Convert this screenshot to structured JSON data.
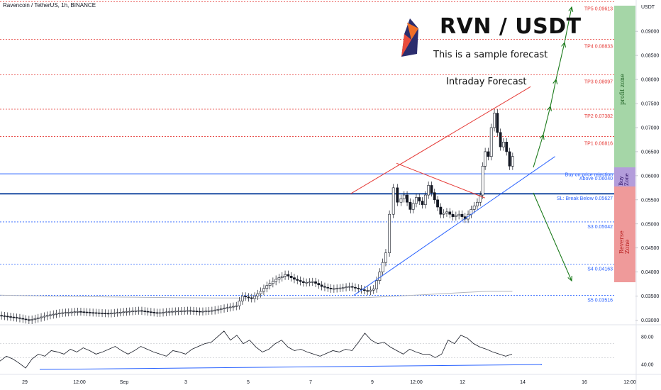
{
  "header": {
    "symbol": "Ravencoin / TetherUS, 1h, BINANCE"
  },
  "title": "RVN / USDT",
  "subtitle": "This is a sample forecast",
  "forecast_label": "Intraday Forecast",
  "axis_unit": "USDT",
  "zones": {
    "profit": "profit zone",
    "buy_line1": "Buy",
    "buy_line2": "Zone",
    "reverse_line1": "Reverse",
    "reverse_line2": "Zone"
  },
  "colors": {
    "up": "#131722",
    "down": "#131722",
    "tp": "#e53935",
    "support": "#2962ff",
    "profit_zone": "#a5d6a7",
    "buy_zone": "#b39ddb",
    "reverse_zone": "#ef9a9a",
    "arrow": "#1b7a1b",
    "ma": "#b2b5be"
  },
  "chart_data": [
    {
      "type": "candlestick",
      "title": "RVN / USDT",
      "ylim": [
        0.0295,
        0.0965
      ],
      "x_ticks": [
        "29",
        "12:00",
        "Sep",
        "3",
        "5",
        "7",
        "9",
        "12:00",
        "12",
        "14",
        "16",
        "12:00"
      ],
      "y_ticks": [
        0.03,
        0.035,
        0.04,
        0.045,
        0.05,
        0.055,
        0.06,
        0.065,
        0.07,
        0.075,
        0.08,
        0.085,
        0.09
      ],
      "price_path": [
        [
          0.0,
          0.031
        ],
        [
          3.0,
          0.0305
        ],
        [
          5.0,
          0.03
        ],
        [
          8.0,
          0.031
        ],
        [
          10.0,
          0.0315
        ],
        [
          13.0,
          0.0318
        ],
        [
          15.0,
          0.0316
        ],
        [
          18.0,
          0.0314
        ],
        [
          21.0,
          0.0318
        ],
        [
          23.0,
          0.032
        ],
        [
          26.0,
          0.0315
        ],
        [
          28.0,
          0.0318
        ],
        [
          31.0,
          0.032
        ],
        [
          33.0,
          0.0318
        ],
        [
          35.0,
          0.032
        ],
        [
          37.0,
          0.0325
        ],
        [
          39.0,
          0.033
        ],
        [
          40.0,
          0.035
        ],
        [
          41.5,
          0.0345
        ],
        [
          43.0,
          0.036
        ],
        [
          44.0,
          0.0372
        ],
        [
          45.5,
          0.0385
        ],
        [
          47.0,
          0.0395
        ],
        [
          48.5,
          0.0385
        ],
        [
          50.0,
          0.0378
        ],
        [
          51.5,
          0.038
        ],
        [
          53.0,
          0.037
        ],
        [
          54.5,
          0.0365
        ],
        [
          56.0,
          0.0367
        ],
        [
          57.5,
          0.037
        ],
        [
          59.0,
          0.0365
        ],
        [
          60.5,
          0.036
        ],
        [
          61.5,
          0.0365
        ],
        [
          62.5,
          0.04
        ],
        [
          63.5,
          0.044
        ],
        [
          64.2,
          0.052
        ],
        [
          64.8,
          0.0575
        ],
        [
          65.5,
          0.0545
        ],
        [
          66.5,
          0.056
        ],
        [
          67.5,
          0.053
        ],
        [
          68.5,
          0.0555
        ],
        [
          69.5,
          0.054
        ],
        [
          70.5,
          0.058
        ],
        [
          71.5,
          0.055
        ],
        [
          72.5,
          0.052
        ],
        [
          73.5,
          0.0525
        ],
        [
          74.5,
          0.0515
        ],
        [
          75.5,
          0.052
        ],
        [
          76.5,
          0.051
        ],
        [
          77.5,
          0.053
        ],
        [
          78.5,
          0.0545
        ],
        [
          79.0,
          0.056
        ],
        [
          79.3,
          0.062
        ],
        [
          79.8,
          0.065
        ],
        [
          80.3,
          0.064
        ],
        [
          80.8,
          0.07
        ],
        [
          81.3,
          0.073
        ],
        [
          81.8,
          0.069
        ],
        [
          82.3,
          0.066
        ],
        [
          82.8,
          0.067
        ],
        [
          83.3,
          0.065
        ],
        [
          83.8,
          0.062
        ],
        [
          84.3,
          0.064
        ]
      ],
      "levels": [
        {
          "label": "TP5 0.09613",
          "value": 0.09613,
          "kind": "target"
        },
        {
          "label": "TP4 0.08833",
          "value": 0.08833,
          "kind": "target"
        },
        {
          "label": "TP3 0.08097",
          "value": 0.08097,
          "kind": "target"
        },
        {
          "label": "TP2 0.07382",
          "value": 0.07382,
          "kind": "target"
        },
        {
          "label": "TP1 0.06816",
          "value": 0.06816,
          "kind": "target"
        },
        {
          "label": "Buy on price rejection",
          "value": 0.062,
          "kind": "note"
        },
        {
          "label": "Above 0.06040",
          "value": 0.0604,
          "kind": "buy"
        },
        {
          "label": "SL: Break Below 0.05627",
          "value": 0.05627,
          "kind": "stop"
        },
        {
          "label": "S3 0.05042",
          "value": 0.05042,
          "kind": "support"
        },
        {
          "label": "S4 0.04163",
          "value": 0.04163,
          "kind": "support"
        },
        {
          "label": "S5 0.03516",
          "value": 0.03516,
          "kind": "support"
        }
      ]
    },
    {
      "type": "line",
      "name": "oscillator",
      "ylim": [
        30,
        95
      ],
      "y_ticks": [
        40.0,
        80.0
      ],
      "values": [
        45,
        52,
        48,
        42,
        35,
        48,
        55,
        52,
        60,
        58,
        55,
        62,
        58,
        64,
        60,
        55,
        58,
        62,
        66,
        60,
        55,
        60,
        66,
        62,
        58,
        55,
        52,
        60,
        58,
        55,
        62,
        66,
        70,
        72,
        80,
        88,
        75,
        82,
        70,
        75,
        65,
        58,
        62,
        70,
        75,
        65,
        60,
        62,
        58,
        55,
        52,
        56,
        60,
        58,
        62,
        60,
        72,
        85,
        75,
        70,
        72,
        65,
        60,
        55,
        62,
        58,
        55,
        55,
        50,
        55,
        75,
        70,
        82,
        78,
        70,
        65,
        62,
        58,
        55,
        52,
        55
      ]
    }
  ]
}
